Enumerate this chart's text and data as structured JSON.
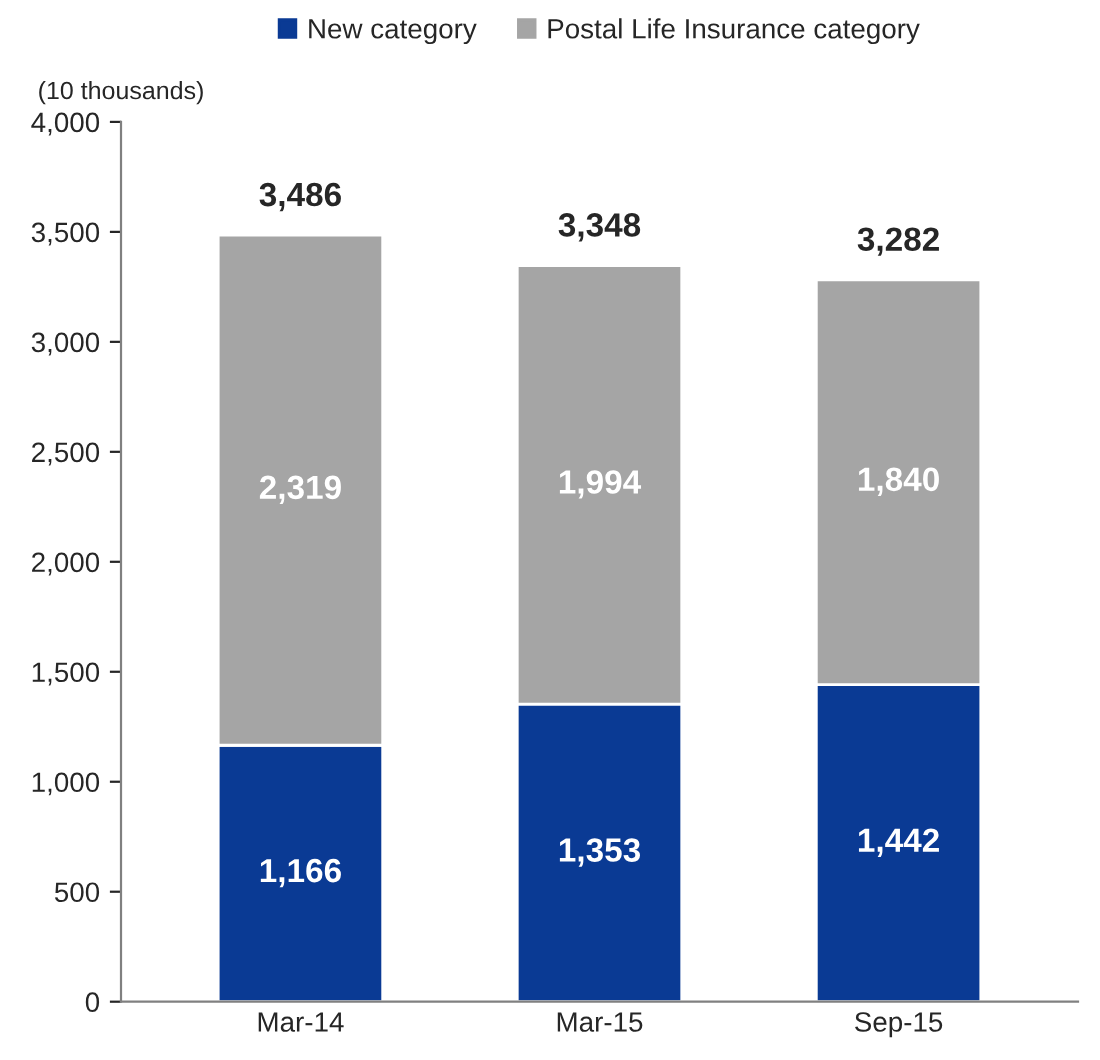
{
  "chart_data": {
    "type": "bar",
    "stacked": true,
    "ylabel": "(10 thousands)",
    "categories": [
      "Mar-14",
      "Mar-15",
      "Sep-15"
    ],
    "series": [
      {
        "name": "New category",
        "color": "#0a3a94",
        "values": [
          1166,
          1353,
          1442
        ],
        "value_labels": [
          "1,166",
          "1,353",
          "1,442"
        ]
      },
      {
        "name": "Postal Life Insurance category",
        "color": "#a5a5a5",
        "values": [
          2319,
          1994,
          1840
        ],
        "value_labels": [
          "2,319",
          "1,994",
          "1,840"
        ]
      }
    ],
    "totals": [
      "3,486",
      "3,348",
      "3,282"
    ],
    "ylim": [
      0,
      4000
    ],
    "yticks": [
      {
        "value": 0,
        "label": "0"
      },
      {
        "value": 500,
        "label": "500"
      },
      {
        "value": 1000,
        "label": "1,000"
      },
      {
        "value": 1500,
        "label": "1,500"
      },
      {
        "value": 2000,
        "label": "2,000"
      },
      {
        "value": 2500,
        "label": "2,500"
      },
      {
        "value": 3000,
        "label": "3,000"
      },
      {
        "value": 3500,
        "label": "3,500"
      },
      {
        "value": 4000,
        "label": "4,000"
      }
    ],
    "grid": false,
    "legend": "top"
  }
}
